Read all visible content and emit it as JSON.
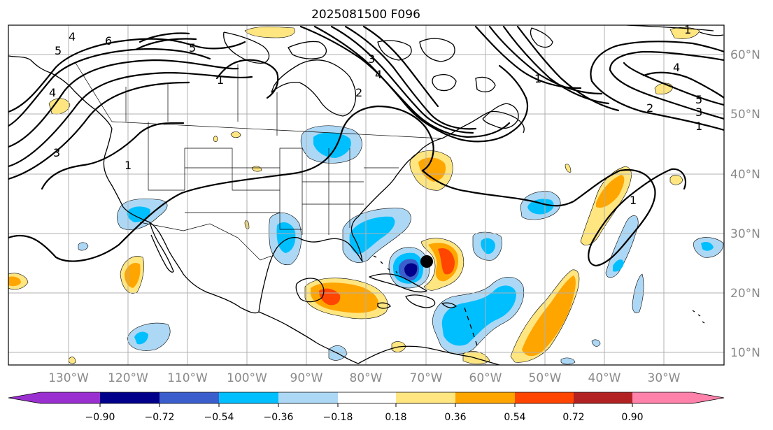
{
  "title": "2025081500 F096",
  "lon_labels": [
    "130°W",
    "120°W",
    "110°W",
    "100°W",
    "90°W",
    "80°W",
    "70°W",
    "60°W",
    "50°W",
    "40°W",
    "30°W"
  ],
  "lat_labels": [
    "60°N",
    "50°N",
    "40°N",
    "30°N",
    "20°N",
    "10°N"
  ],
  "colorbar": {
    "tick_labels": [
      "−0.90",
      "−0.72",
      "−0.54",
      "−0.36",
      "−0.18",
      "0.18",
      "0.36",
      "0.54",
      "0.72",
      "0.90"
    ],
    "colors": [
      "#9b30d0",
      "#00008b",
      "#3a5fcd",
      "#00bfff",
      "#add8f5",
      "#ffffff",
      "#ffe680",
      "#ffa500",
      "#ff4500",
      "#b22222",
      "#ff82ab"
    ]
  },
  "contour_labels": [
    "4",
    "5",
    "6",
    "5",
    "1",
    "4",
    "1",
    "3",
    "4",
    "2",
    "1",
    "1",
    "4",
    "2",
    "3",
    "5",
    "1",
    "1",
    "3"
  ],
  "marker": "storm-center"
}
